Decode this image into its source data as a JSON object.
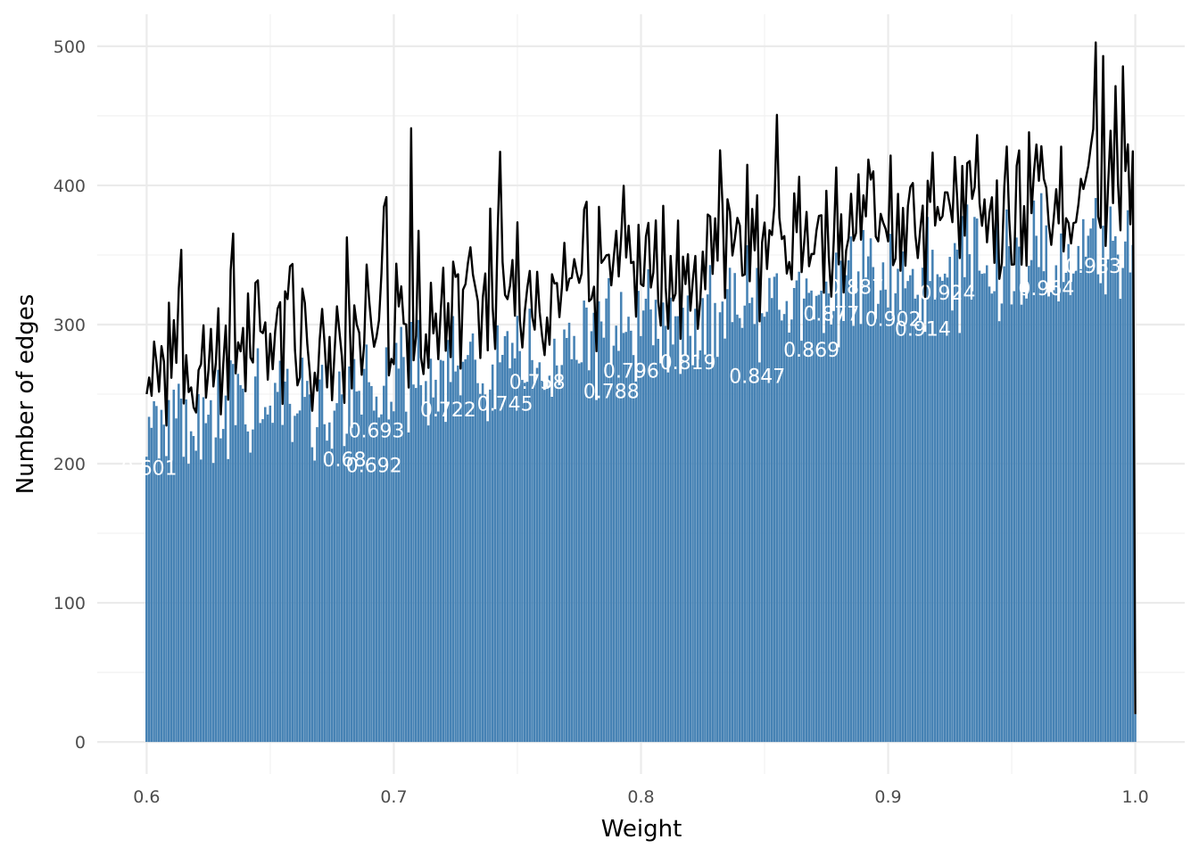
{
  "chart_data": {
    "type": "bar",
    "xlabel": "Weight",
    "ylabel": "Number of edges",
    "xlim": [
      0.58,
      1.02
    ],
    "ylim": [
      -23,
      523
    ],
    "x_ticks": [
      0.6,
      0.7,
      0.8,
      0.9,
      1.0
    ],
    "x_tick_labels": [
      "0.6",
      "0.7",
      "0.8",
      "0.9",
      "1.0"
    ],
    "y_ticks": [
      0,
      100,
      200,
      300,
      400,
      500
    ],
    "y_tick_labels": [
      "0",
      "100",
      "200",
      "300",
      "400",
      "500"
    ],
    "grid": true,
    "bin_width": 0.001,
    "x_start": 0.6,
    "x_end": 1.0,
    "trend_start": 225,
    "trend_end": 365,
    "line_series_peak": 493,
    "final_bin_count": 20,
    "bar_color": "#4682B4",
    "line_color": "#000000",
    "label_color": "#ffffff",
    "bar_labels": [
      {
        "x": 0.601,
        "y": 192,
        "text": "0.601"
      },
      {
        "x": 0.68,
        "y": 198,
        "text": "0.68"
      },
      {
        "x": 0.692,
        "y": 194,
        "text": "0.692"
      },
      {
        "x": 0.693,
        "y": 219,
        "text": "0.693"
      },
      {
        "x": 0.722,
        "y": 234,
        "text": "0.722"
      },
      {
        "x": 0.745,
        "y": 238,
        "text": "0.745"
      },
      {
        "x": 0.758,
        "y": 254,
        "text": "0.758"
      },
      {
        "x": 0.788,
        "y": 247,
        "text": "0.788"
      },
      {
        "x": 0.796,
        "y": 262,
        "text": "0.796"
      },
      {
        "x": 0.819,
        "y": 268,
        "text": "0.819"
      },
      {
        "x": 0.847,
        "y": 258,
        "text": "0.847"
      },
      {
        "x": 0.869,
        "y": 277,
        "text": "0.869"
      },
      {
        "x": 0.877,
        "y": 303,
        "text": "0.877"
      },
      {
        "x": 0.887,
        "y": 322,
        "text": "0.887"
      },
      {
        "x": 0.902,
        "y": 299,
        "text": "0.902"
      },
      {
        "x": 0.914,
        "y": 292,
        "text": "0.914"
      },
      {
        "x": 0.924,
        "y": 318,
        "text": "0.924"
      },
      {
        "x": 0.964,
        "y": 321,
        "text": "0.964"
      },
      {
        "x": 0.983,
        "y": 337,
        "text": "0.983"
      }
    ]
  }
}
